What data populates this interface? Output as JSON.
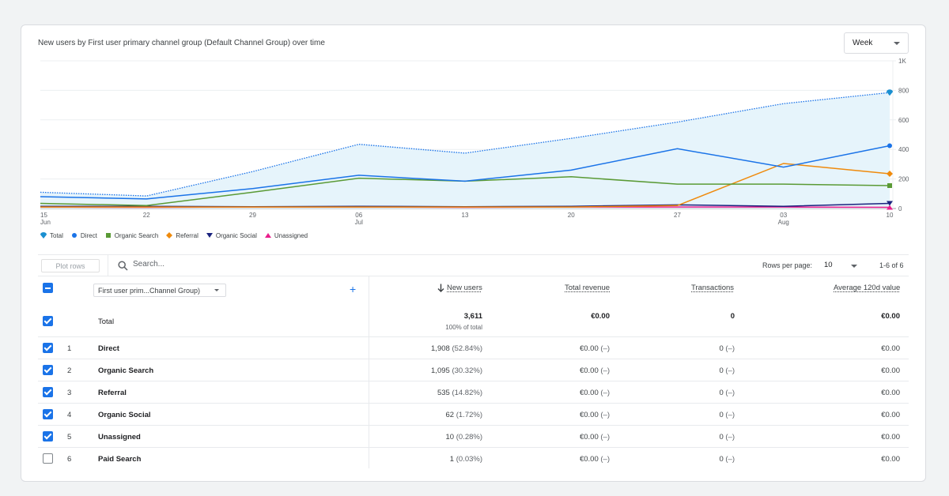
{
  "chart": {
    "title": "New users by First user primary channel group (Default Channel Group) over time",
    "period_select": "Week"
  },
  "chart_data": {
    "type": "area",
    "x_labels": [
      "15",
      "22",
      "29",
      "06",
      "13",
      "20",
      "27",
      "03",
      "10"
    ],
    "x_sublabels": [
      "Jun",
      "",
      "",
      "Jul",
      "",
      "",
      "",
      "Aug",
      ""
    ],
    "y_ticks": [
      "0",
      "200",
      "400",
      "600",
      "800",
      "1K"
    ],
    "ylim": [
      0,
      1000
    ],
    "series": [
      {
        "name": "Total",
        "color": "#1a73e8",
        "marker": "pin",
        "values": [
          110,
          85,
          250,
          435,
          375,
          475,
          585,
          710,
          785
        ]
      },
      {
        "name": "Direct",
        "color": "#1a73e8",
        "marker": "circle",
        "values": [
          80,
          65,
          135,
          225,
          185,
          260,
          405,
          280,
          425
        ]
      },
      {
        "name": "Organic Search",
        "color": "#5a9a35",
        "marker": "square",
        "values": [
          35,
          20,
          110,
          205,
          185,
          215,
          165,
          165,
          155
        ]
      },
      {
        "name": "Referral",
        "color": "#ef8a0c",
        "marker": "diamond",
        "values": [
          10,
          10,
          10,
          10,
          10,
          10,
          20,
          305,
          235
        ]
      },
      {
        "name": "Organic Social",
        "color": "#1a237e",
        "marker": "triangle-down",
        "values": [
          15,
          15,
          12,
          15,
          12,
          15,
          25,
          15,
          35
        ]
      },
      {
        "name": "Unassigned",
        "color": "#e91e8c",
        "marker": "triangle-up",
        "values": [
          10,
          8,
          10,
          10,
          8,
          10,
          10,
          10,
          8
        ]
      }
    ]
  },
  "toolbar": {
    "plot_rows": "Plot rows",
    "search_placeholder": "Search...",
    "rows_per_page_label": "Rows per page:",
    "rows_per_page": "10",
    "pagination": "1-6 of 6"
  },
  "table": {
    "dimension": "First user prim...Channel Group)",
    "columns": [
      "New users",
      "Total revenue",
      "Transactions",
      "Average 120d value"
    ],
    "total": {
      "label": "Total",
      "new_users": "3,611",
      "new_users_sub": "100% of total",
      "revenue": "€0.00",
      "transactions": "0",
      "avg": "€0.00"
    },
    "rows": [
      {
        "idx": "1",
        "name": "Direct",
        "users": "1,908",
        "pct": "(52.84%)",
        "revenue": "€0.00",
        "trans": "0",
        "dash": "(–)",
        "avg": "€0.00",
        "checked": true
      },
      {
        "idx": "2",
        "name": "Organic Search",
        "users": "1,095",
        "pct": "(30.32%)",
        "revenue": "€0.00",
        "trans": "0",
        "dash": "(–)",
        "avg": "€0.00",
        "checked": true
      },
      {
        "idx": "3",
        "name": "Referral",
        "users": "535",
        "pct": "(14.82%)",
        "revenue": "€0.00",
        "trans": "0",
        "dash": "(–)",
        "avg": "€0.00",
        "checked": true
      },
      {
        "idx": "4",
        "name": "Organic Social",
        "users": "62",
        "pct": "(1.72%)",
        "revenue": "€0.00",
        "trans": "0",
        "dash": "(–)",
        "avg": "€0.00",
        "checked": true
      },
      {
        "idx": "5",
        "name": "Unassigned",
        "users": "10",
        "pct": "(0.28%)",
        "revenue": "€0.00",
        "trans": "0",
        "dash": "(–)",
        "avg": "€0.00",
        "checked": true
      },
      {
        "idx": "6",
        "name": "Paid Search",
        "users": "1",
        "pct": "(0.03%)",
        "revenue": "€0.00",
        "trans": "0",
        "dash": "(–)",
        "avg": "€0.00",
        "checked": false
      }
    ]
  }
}
